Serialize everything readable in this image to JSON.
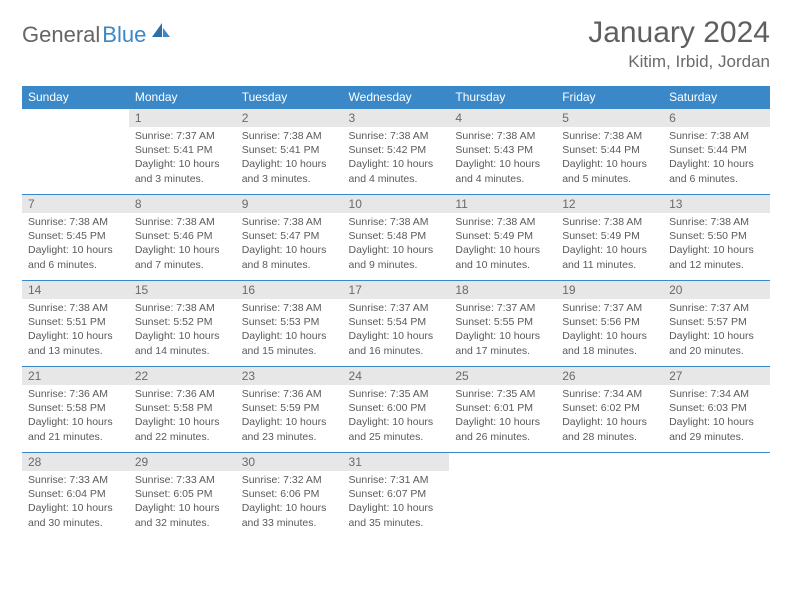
{
  "logo": {
    "text_gray": "General",
    "text_blue": "Blue"
  },
  "title": "January 2024",
  "location": "Kitim, Irbid, Jordan",
  "colors": {
    "header_bg": "#3a88c8",
    "header_text": "#ffffff",
    "daynum_bg": "#e7e7e7",
    "row_border": "#3a88c8",
    "body_text": "#5a5a5a",
    "title_text": "#5f5f5f"
  },
  "weekdays": [
    "Sunday",
    "Monday",
    "Tuesday",
    "Wednesday",
    "Thursday",
    "Friday",
    "Saturday"
  ],
  "weeks": [
    [
      null,
      {
        "n": "1",
        "sr": "Sunrise: 7:37 AM",
        "ss": "Sunset: 5:41 PM",
        "d1": "Daylight: 10 hours",
        "d2": "and 3 minutes."
      },
      {
        "n": "2",
        "sr": "Sunrise: 7:38 AM",
        "ss": "Sunset: 5:41 PM",
        "d1": "Daylight: 10 hours",
        "d2": "and 3 minutes."
      },
      {
        "n": "3",
        "sr": "Sunrise: 7:38 AM",
        "ss": "Sunset: 5:42 PM",
        "d1": "Daylight: 10 hours",
        "d2": "and 4 minutes."
      },
      {
        "n": "4",
        "sr": "Sunrise: 7:38 AM",
        "ss": "Sunset: 5:43 PM",
        "d1": "Daylight: 10 hours",
        "d2": "and 4 minutes."
      },
      {
        "n": "5",
        "sr": "Sunrise: 7:38 AM",
        "ss": "Sunset: 5:44 PM",
        "d1": "Daylight: 10 hours",
        "d2": "and 5 minutes."
      },
      {
        "n": "6",
        "sr": "Sunrise: 7:38 AM",
        "ss": "Sunset: 5:44 PM",
        "d1": "Daylight: 10 hours",
        "d2": "and 6 minutes."
      }
    ],
    [
      {
        "n": "7",
        "sr": "Sunrise: 7:38 AM",
        "ss": "Sunset: 5:45 PM",
        "d1": "Daylight: 10 hours",
        "d2": "and 6 minutes."
      },
      {
        "n": "8",
        "sr": "Sunrise: 7:38 AM",
        "ss": "Sunset: 5:46 PM",
        "d1": "Daylight: 10 hours",
        "d2": "and 7 minutes."
      },
      {
        "n": "9",
        "sr": "Sunrise: 7:38 AM",
        "ss": "Sunset: 5:47 PM",
        "d1": "Daylight: 10 hours",
        "d2": "and 8 minutes."
      },
      {
        "n": "10",
        "sr": "Sunrise: 7:38 AM",
        "ss": "Sunset: 5:48 PM",
        "d1": "Daylight: 10 hours",
        "d2": "and 9 minutes."
      },
      {
        "n": "11",
        "sr": "Sunrise: 7:38 AM",
        "ss": "Sunset: 5:49 PM",
        "d1": "Daylight: 10 hours",
        "d2": "and 10 minutes."
      },
      {
        "n": "12",
        "sr": "Sunrise: 7:38 AM",
        "ss": "Sunset: 5:49 PM",
        "d1": "Daylight: 10 hours",
        "d2": "and 11 minutes."
      },
      {
        "n": "13",
        "sr": "Sunrise: 7:38 AM",
        "ss": "Sunset: 5:50 PM",
        "d1": "Daylight: 10 hours",
        "d2": "and 12 minutes."
      }
    ],
    [
      {
        "n": "14",
        "sr": "Sunrise: 7:38 AM",
        "ss": "Sunset: 5:51 PM",
        "d1": "Daylight: 10 hours",
        "d2": "and 13 minutes."
      },
      {
        "n": "15",
        "sr": "Sunrise: 7:38 AM",
        "ss": "Sunset: 5:52 PM",
        "d1": "Daylight: 10 hours",
        "d2": "and 14 minutes."
      },
      {
        "n": "16",
        "sr": "Sunrise: 7:38 AM",
        "ss": "Sunset: 5:53 PM",
        "d1": "Daylight: 10 hours",
        "d2": "and 15 minutes."
      },
      {
        "n": "17",
        "sr": "Sunrise: 7:37 AM",
        "ss": "Sunset: 5:54 PM",
        "d1": "Daylight: 10 hours",
        "d2": "and 16 minutes."
      },
      {
        "n": "18",
        "sr": "Sunrise: 7:37 AM",
        "ss": "Sunset: 5:55 PM",
        "d1": "Daylight: 10 hours",
        "d2": "and 17 minutes."
      },
      {
        "n": "19",
        "sr": "Sunrise: 7:37 AM",
        "ss": "Sunset: 5:56 PM",
        "d1": "Daylight: 10 hours",
        "d2": "and 18 minutes."
      },
      {
        "n": "20",
        "sr": "Sunrise: 7:37 AM",
        "ss": "Sunset: 5:57 PM",
        "d1": "Daylight: 10 hours",
        "d2": "and 20 minutes."
      }
    ],
    [
      {
        "n": "21",
        "sr": "Sunrise: 7:36 AM",
        "ss": "Sunset: 5:58 PM",
        "d1": "Daylight: 10 hours",
        "d2": "and 21 minutes."
      },
      {
        "n": "22",
        "sr": "Sunrise: 7:36 AM",
        "ss": "Sunset: 5:58 PM",
        "d1": "Daylight: 10 hours",
        "d2": "and 22 minutes."
      },
      {
        "n": "23",
        "sr": "Sunrise: 7:36 AM",
        "ss": "Sunset: 5:59 PM",
        "d1": "Daylight: 10 hours",
        "d2": "and 23 minutes."
      },
      {
        "n": "24",
        "sr": "Sunrise: 7:35 AM",
        "ss": "Sunset: 6:00 PM",
        "d1": "Daylight: 10 hours",
        "d2": "and 25 minutes."
      },
      {
        "n": "25",
        "sr": "Sunrise: 7:35 AM",
        "ss": "Sunset: 6:01 PM",
        "d1": "Daylight: 10 hours",
        "d2": "and 26 minutes."
      },
      {
        "n": "26",
        "sr": "Sunrise: 7:34 AM",
        "ss": "Sunset: 6:02 PM",
        "d1": "Daylight: 10 hours",
        "d2": "and 28 minutes."
      },
      {
        "n": "27",
        "sr": "Sunrise: 7:34 AM",
        "ss": "Sunset: 6:03 PM",
        "d1": "Daylight: 10 hours",
        "d2": "and 29 minutes."
      }
    ],
    [
      {
        "n": "28",
        "sr": "Sunrise: 7:33 AM",
        "ss": "Sunset: 6:04 PM",
        "d1": "Daylight: 10 hours",
        "d2": "and 30 minutes."
      },
      {
        "n": "29",
        "sr": "Sunrise: 7:33 AM",
        "ss": "Sunset: 6:05 PM",
        "d1": "Daylight: 10 hours",
        "d2": "and 32 minutes."
      },
      {
        "n": "30",
        "sr": "Sunrise: 7:32 AM",
        "ss": "Sunset: 6:06 PM",
        "d1": "Daylight: 10 hours",
        "d2": "and 33 minutes."
      },
      {
        "n": "31",
        "sr": "Sunrise: 7:31 AM",
        "ss": "Sunset: 6:07 PM",
        "d1": "Daylight: 10 hours",
        "d2": "and 35 minutes."
      },
      null,
      null,
      null
    ]
  ]
}
